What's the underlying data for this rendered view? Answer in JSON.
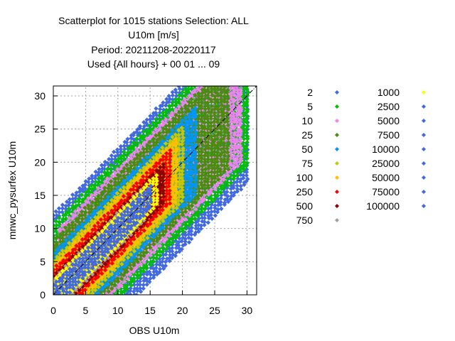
{
  "title": {
    "lines": [
      "Scatterplot for 1015 stations Selection: ALL",
      "U10m [m/s]",
      "Period: 20211208-20220117",
      "Used {All hours} + 00 01 ... 09"
    ]
  },
  "colors": {
    "2": "#4169e1",
    "5": "#00c000",
    "10": "#ee82ee",
    "25": "#4b8b0e",
    "50": "#0096ff",
    "75": "#c8c800",
    "100": "#ffc000",
    "250": "#ff0000",
    "500": "#8b0000",
    "750": "#a0a0a0",
    "1000": "#ffff00",
    "2500": "#4169e1",
    "5000": "#4169e1",
    "7500": "#4169e1",
    "10000": "#4169e1",
    "25000": "#4169e1",
    "50000": "#4169e1",
    "75000": "#4169e1",
    "100000": "#4169e1"
  },
  "chart_data": {
    "type": "scatter",
    "title": "Scatterplot for 1015 stations Selection: ALL",
    "xlabel": "OBS U10m",
    "ylabel": "mnwc_pysurfex U10m",
    "xlim": [
      0,
      31.5
    ],
    "ylim": [
      0,
      31.5
    ],
    "xticks": [
      "0",
      "5",
      "10",
      "15",
      "20",
      "25",
      "30"
    ],
    "yticks": [
      "0",
      "5",
      "10",
      "15",
      "20",
      "25",
      "30"
    ],
    "grid": true,
    "diagonal_line": true,
    "marker": "diamond",
    "legend_position": "right",
    "legend_title": "",
    "legend": [
      {
        "label": "2",
        "color": "#4169e1"
      },
      {
        "label": "5",
        "color": "#00c000"
      },
      {
        "label": "10",
        "color": "#ee82ee"
      },
      {
        "label": "25",
        "color": "#4b8b0e"
      },
      {
        "label": "50",
        "color": "#0096ff"
      },
      {
        "label": "75",
        "color": "#c8c800"
      },
      {
        "label": "100",
        "color": "#ffc000"
      },
      {
        "label": "250",
        "color": "#ff0000"
      },
      {
        "label": "500",
        "color": "#8b0000"
      },
      {
        "label": "750",
        "color": "#a0a0a0"
      },
      {
        "label": "1000",
        "color": "#ffff00"
      },
      {
        "label": "2500",
        "color": "#4169e1"
      },
      {
        "label": "5000",
        "color": "#4169e1"
      },
      {
        "label": "7500",
        "color": "#4169e1"
      },
      {
        "label": "10000",
        "color": "#4169e1"
      },
      {
        "label": "25000",
        "color": "#4169e1"
      },
      {
        "label": "50000",
        "color": "#4169e1"
      },
      {
        "label": "75000",
        "color": "#4169e1"
      },
      {
        "label": "100000",
        "color": "#4169e1"
      }
    ],
    "density_bands": [
      {
        "class": "2",
        "color": "#4169e1",
        "dist_below": 13.0,
        "dist_above": 12.0,
        "range": [
          0,
          30
        ]
      },
      {
        "class": "5",
        "color": "#00c000",
        "dist_below": 10.5,
        "dist_above": 10.5,
        "range": [
          0,
          30
        ]
      },
      {
        "class": "10",
        "color": "#ee82ee",
        "dist_below": 9.0,
        "dist_above": 9.0,
        "range": [
          1,
          29
        ]
      },
      {
        "class": "25",
        "color": "#4b8b0e",
        "dist_below": 8.0,
        "dist_above": 8.0,
        "range": [
          0,
          27
        ]
      },
      {
        "class": "50",
        "color": "#0096ff",
        "dist_below": 6.8,
        "dist_above": 6.2,
        "range": [
          0,
          22
        ]
      },
      {
        "class": "75",
        "color": "#c8c800",
        "dist_below": 5.8,
        "dist_above": 5.4,
        "range": [
          0,
          20
        ]
      },
      {
        "class": "100",
        "color": "#ffc000",
        "dist_below": 5.0,
        "dist_above": 4.8,
        "range": [
          0,
          19
        ]
      },
      {
        "class": "250",
        "color": "#ff0000",
        "dist_below": 4.2,
        "dist_above": 4.0,
        "range": [
          0,
          18
        ]
      },
      {
        "class": "500",
        "color": "#8b0000",
        "dist_below": 3.3,
        "dist_above": 3.0,
        "range": [
          0,
          17
        ]
      },
      {
        "class": "750",
        "color": "#a0a0a0",
        "dist_below": 2.8,
        "dist_above": 2.6,
        "range": [
          0,
          14
        ]
      },
      {
        "class": "1000",
        "color": "#ffff00",
        "dist_below": 2.4,
        "dist_above": 2.2,
        "range": [
          0,
          16
        ]
      },
      {
        "class": "2500",
        "color": "#4169e1",
        "dist_below": 2.0,
        "dist_above": 1.9,
        "range": [
          0,
          15
        ]
      }
    ]
  }
}
